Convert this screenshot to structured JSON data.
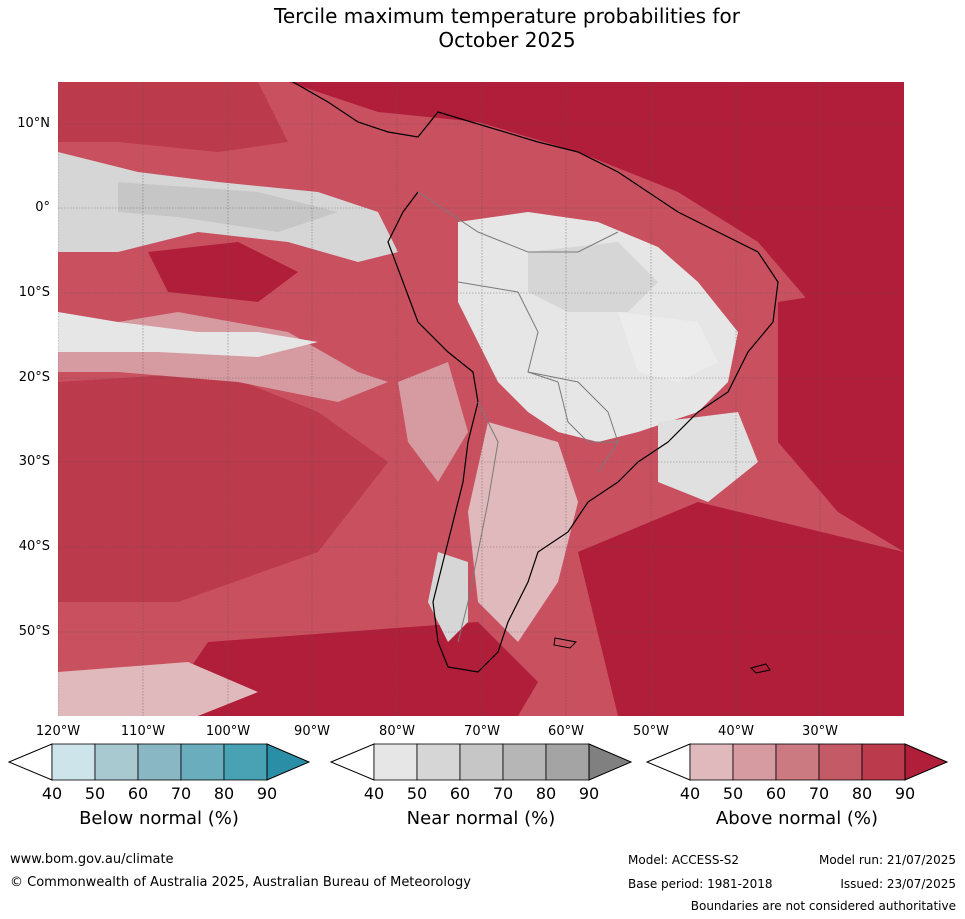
{
  "title": {
    "line1": "Tercile maximum temperature probabilities for",
    "line2": "October 2025"
  },
  "axes": {
    "lat_labels": [
      "10°N",
      "0°",
      "10°S",
      "20°S",
      "30°S",
      "40°S",
      "50°S"
    ],
    "lon_labels": [
      "120°W",
      "110°W",
      "100°W",
      "90°W",
      "80°W",
      "70°W",
      "60°W",
      "50°W",
      "40°W",
      "30°W"
    ]
  },
  "colorbars": [
    {
      "title": "Below normal (%)",
      "ticks": [
        "40",
        "50",
        "60",
        "70",
        "80",
        "90"
      ],
      "colors": [
        "#cde4ea",
        "#a9c9d1",
        "#8ab7c4",
        "#6aaebd",
        "#48a2b4",
        "#2a8fa6"
      ]
    },
    {
      "title": "Near normal (%)",
      "ticks": [
        "40",
        "50",
        "60",
        "70",
        "80",
        "90"
      ],
      "colors": [
        "#e6e6e6",
        "#d6d6d6",
        "#c6c6c6",
        "#b6b6b6",
        "#a4a4a4",
        "#808080"
      ]
    },
    {
      "title": "Above normal (%)",
      "ticks": [
        "40",
        "50",
        "60",
        "70",
        "80",
        "90"
      ],
      "colors": [
        "#e0b9bd",
        "#d69aa1",
        "#cc7a82",
        "#c45a66",
        "#bb3a4c",
        "#b01e3a"
      ]
    }
  ],
  "footer": {
    "url": "www.bom.gov.au/climate",
    "copyright": "© Commonwealth of Australia 2025, Australian Bureau of Meteorology",
    "model": "Model: ACCESS-S2",
    "model_run": "Model run: 21/07/2025",
    "base_period": "Base period: 1981-2018",
    "issued": "Issued: 23/07/2025",
    "disclaimer": "Boundaries are not considered authoritative"
  }
}
